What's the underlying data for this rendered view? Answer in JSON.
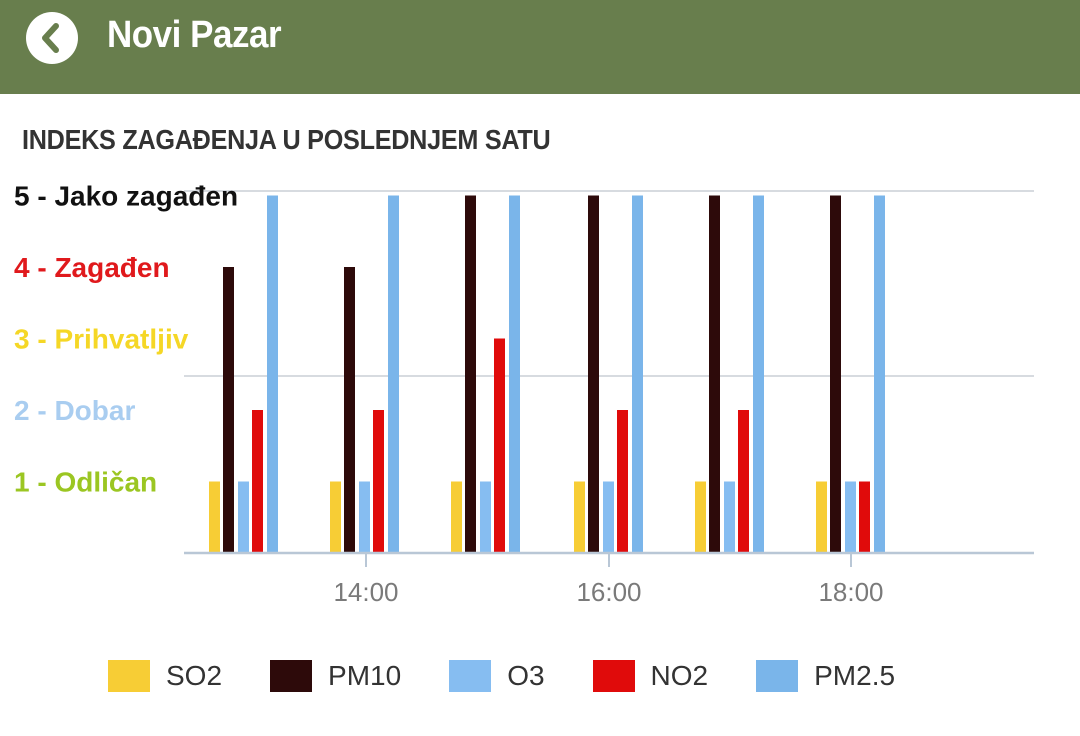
{
  "appbar": {
    "title": "Novi Pazar",
    "back_icon": "chevron-left-icon",
    "color": "#687e4d"
  },
  "section": {
    "title": "INDEKS ZAGAĐENJA U POSLEDNJEM SATU"
  },
  "chart_data": {
    "type": "bar",
    "title": "INDEKS ZAGAĐENJA U POSLEDNJEM SATU",
    "xlabel": "",
    "ylabel": "",
    "ylim": [
      1,
      5.5
    ],
    "grid": true,
    "legend_position": "bottom",
    "y_levels": [
      {
        "value": 5,
        "label": "5 - Jako zagađen",
        "color": "#111111"
      },
      {
        "value": 4,
        "label": "4 - Zagađen",
        "color": "#e0191c"
      },
      {
        "value": 3,
        "label": "3 - Prihvatljiv",
        "color": "#f5d726"
      },
      {
        "value": 2,
        "label": "2 - Dobar",
        "color": "#a9cdf0"
      },
      {
        "value": 1,
        "label": "1 - Odličan",
        "color": "#9bc622"
      }
    ],
    "x_ticks": [
      "14:00",
      "16:00",
      "18:00"
    ],
    "series": [
      {
        "name": "SO2",
        "color": "#f7cd35",
        "values": [
          1,
          1,
          1,
          1,
          1,
          1
        ]
      },
      {
        "name": "PM10",
        "color": "#2d0a0a",
        "values": [
          4,
          4,
          5,
          5,
          5,
          5
        ]
      },
      {
        "name": "O3",
        "color": "#86bdf1",
        "values": [
          1,
          1,
          1,
          1,
          1,
          1
        ]
      },
      {
        "name": "NO2",
        "color": "#e00b0b",
        "values": [
          2,
          2,
          3,
          2,
          2,
          1
        ]
      },
      {
        "name": "PM2.5",
        "color": "#7ab5ea",
        "values": [
          5,
          5,
          5,
          5,
          5,
          5
        ]
      }
    ]
  }
}
